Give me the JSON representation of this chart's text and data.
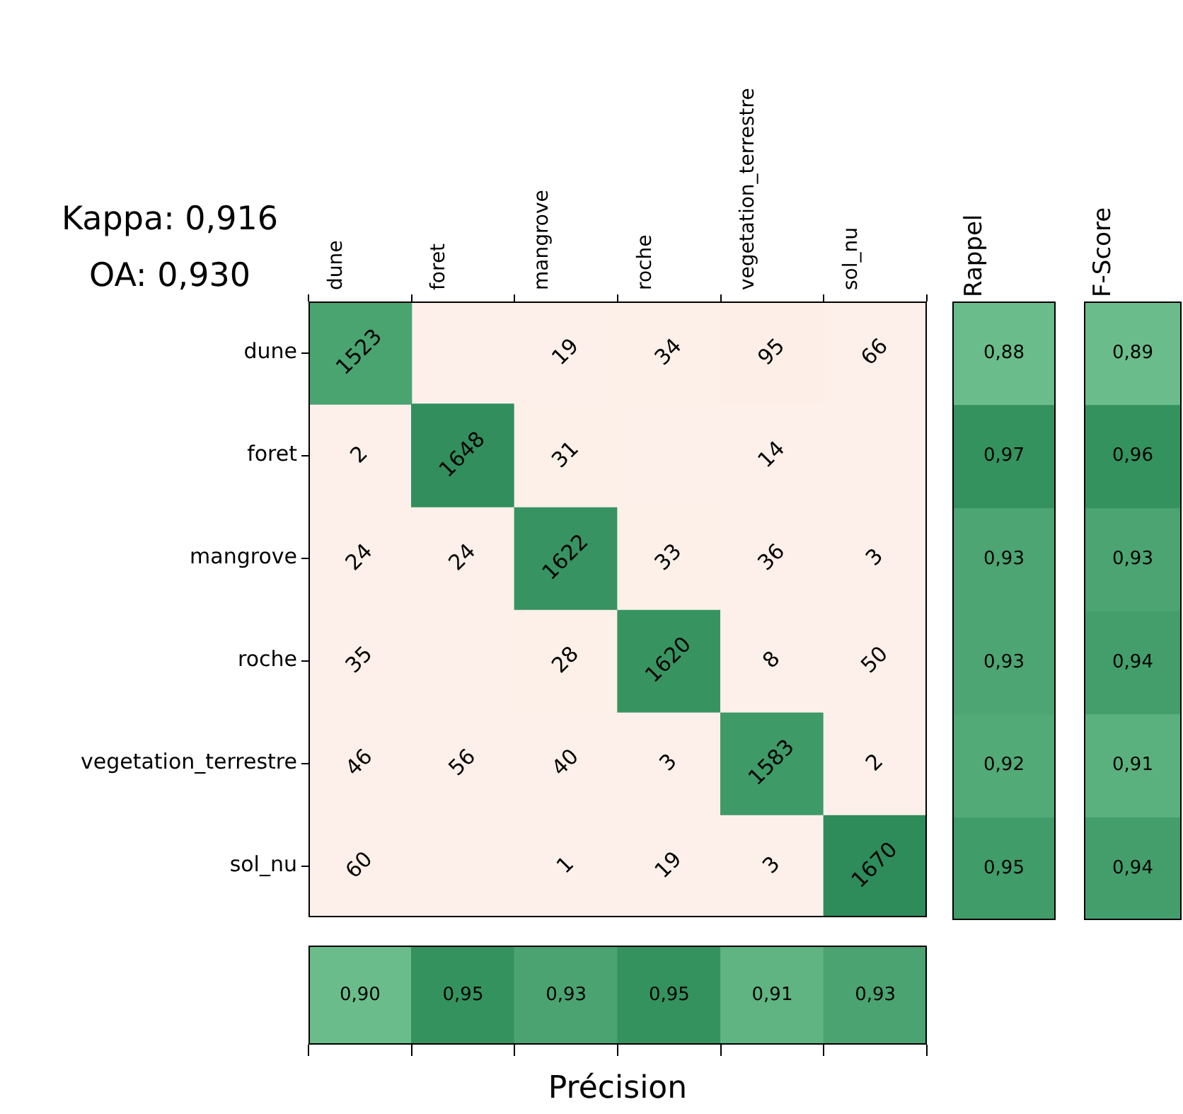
{
  "chart_data": [
    {
      "type": "heatmap",
      "annotations": [
        "Kappa: 0,916",
        "OA: 0,930"
      ],
      "categories": [
        "dune",
        "foret",
        "mangrove",
        "roche",
        "vegetation_terrestre",
        "sol_nu"
      ],
      "y_categories": [
        "dune",
        "foret",
        "mangrove",
        "roche",
        "vegetation_terrestre",
        "sol_nu"
      ],
      "cells": [
        [
          1523,
          null,
          19,
          34,
          95,
          66
        ],
        [
          2,
          1648,
          31,
          null,
          14,
          null
        ],
        [
          24,
          24,
          1622,
          33,
          36,
          3
        ],
        [
          35,
          null,
          28,
          1620,
          8,
          50
        ],
        [
          46,
          56,
          40,
          3,
          1583,
          2
        ],
        [
          60,
          null,
          1,
          19,
          3,
          1670
        ]
      ],
      "data_labels": true
    },
    {
      "type": "heatmap",
      "categories": [
        "Rappel"
      ],
      "y_categories": [
        null,
        null,
        null,
        null,
        null,
        null
      ],
      "cells": [
        [
          0.88
        ],
        [
          0.97
        ],
        [
          0.93
        ],
        [
          0.93
        ],
        [
          0.92
        ],
        [
          0.95
        ]
      ],
      "cell_labels": [
        [
          "0,88"
        ],
        [
          "0,97"
        ],
        [
          "0,93"
        ],
        [
          "0,93"
        ],
        [
          "0,92"
        ],
        [
          "0,95"
        ]
      ],
      "tick_labels": "x"
    },
    {
      "type": "heatmap",
      "categories": [
        "F-Score"
      ],
      "y_categories": [
        null,
        null,
        null,
        null,
        null,
        null
      ],
      "cells": [
        [
          0.89
        ],
        [
          0.96
        ],
        [
          0.93
        ],
        [
          0.94
        ],
        [
          0.91
        ],
        [
          0.94
        ]
      ],
      "cell_labels": [
        [
          "0,89"
        ],
        [
          "0,96"
        ],
        [
          "0,93"
        ],
        [
          "0,94"
        ],
        [
          "0,91"
        ],
        [
          "0,94"
        ]
      ],
      "tick_labels": "x"
    },
    {
      "type": "heatmap",
      "xlabel": "Précision",
      "categories": [
        null,
        null,
        null,
        null,
        null,
        null
      ],
      "y_categories": [
        null
      ],
      "cells": [
        [
          0.9,
          0.95,
          0.93,
          0.95,
          0.91,
          0.93
        ]
      ],
      "cell_labels": [
        [
          "0,90",
          "0,95",
          "0,93",
          "0,95",
          "0,91",
          "0,93"
        ]
      ],
      "tick_labels": false
    }
  ]
}
